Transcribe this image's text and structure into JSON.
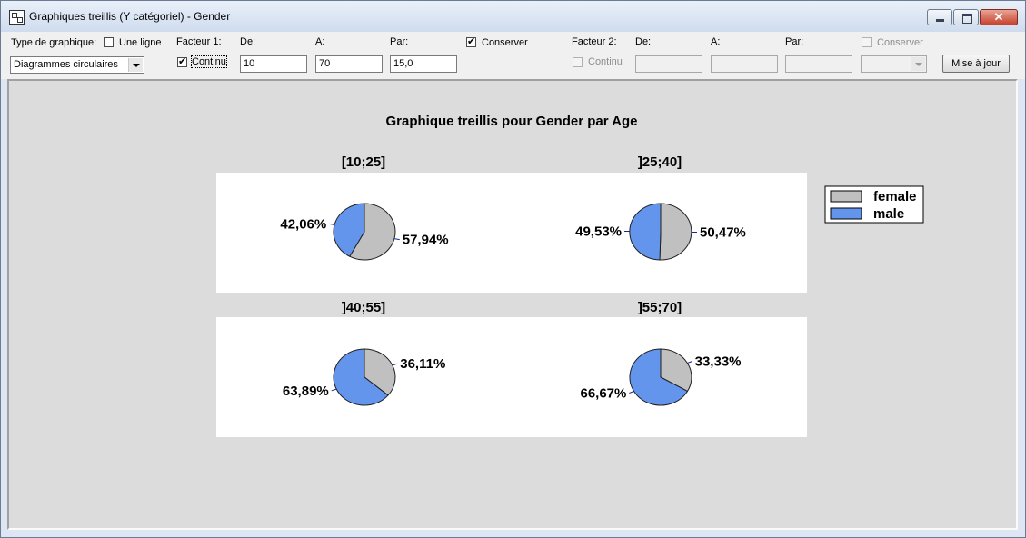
{
  "window": {
    "title": "Graphiques treillis (Y catégoriel) - Gender"
  },
  "toolbar": {
    "type_label": "Type de graphique:",
    "one_line_label": "Une ligne",
    "chart_type_value": "Diagrammes circulaires",
    "factor1": {
      "label": "Facteur 1:",
      "continuous_label": "Continu",
      "from_label": "De:",
      "from_value": "10",
      "to_label": "A:",
      "to_value": "70",
      "step_label": "Par:",
      "step_value": "15,0",
      "keep_label": "Conserver"
    },
    "factor2": {
      "label": "Facteur 2:",
      "continuous_label": "Continu",
      "from_label": "De:",
      "to_label": "A:",
      "step_label": "Par:",
      "keep_label": "Conserver"
    },
    "update_label": "Mise à jour"
  },
  "chart_data": {
    "type": "pie",
    "title": "Graphique treillis pour Gender par Age",
    "categories": [
      "female",
      "male"
    ],
    "colors": {
      "female": "#c0c0c0",
      "male": "#6495ed"
    },
    "legend_position": "right",
    "panels": [
      {
        "title": "[10;25]",
        "values": [
          57.94,
          42.06
        ],
        "labels": [
          "57,94%",
          "42,06%"
        ]
      },
      {
        "title": "]25;40]",
        "values": [
          50.47,
          49.53
        ],
        "labels": [
          "50,47%",
          "49,53%"
        ]
      },
      {
        "title": "]40;55]",
        "values": [
          36.11,
          63.89
        ],
        "labels": [
          "36,11%",
          "63,89%"
        ]
      },
      {
        "title": "]55;70]",
        "values": [
          33.33,
          66.67
        ],
        "labels": [
          "33,33%",
          "66,67%"
        ]
      }
    ]
  }
}
